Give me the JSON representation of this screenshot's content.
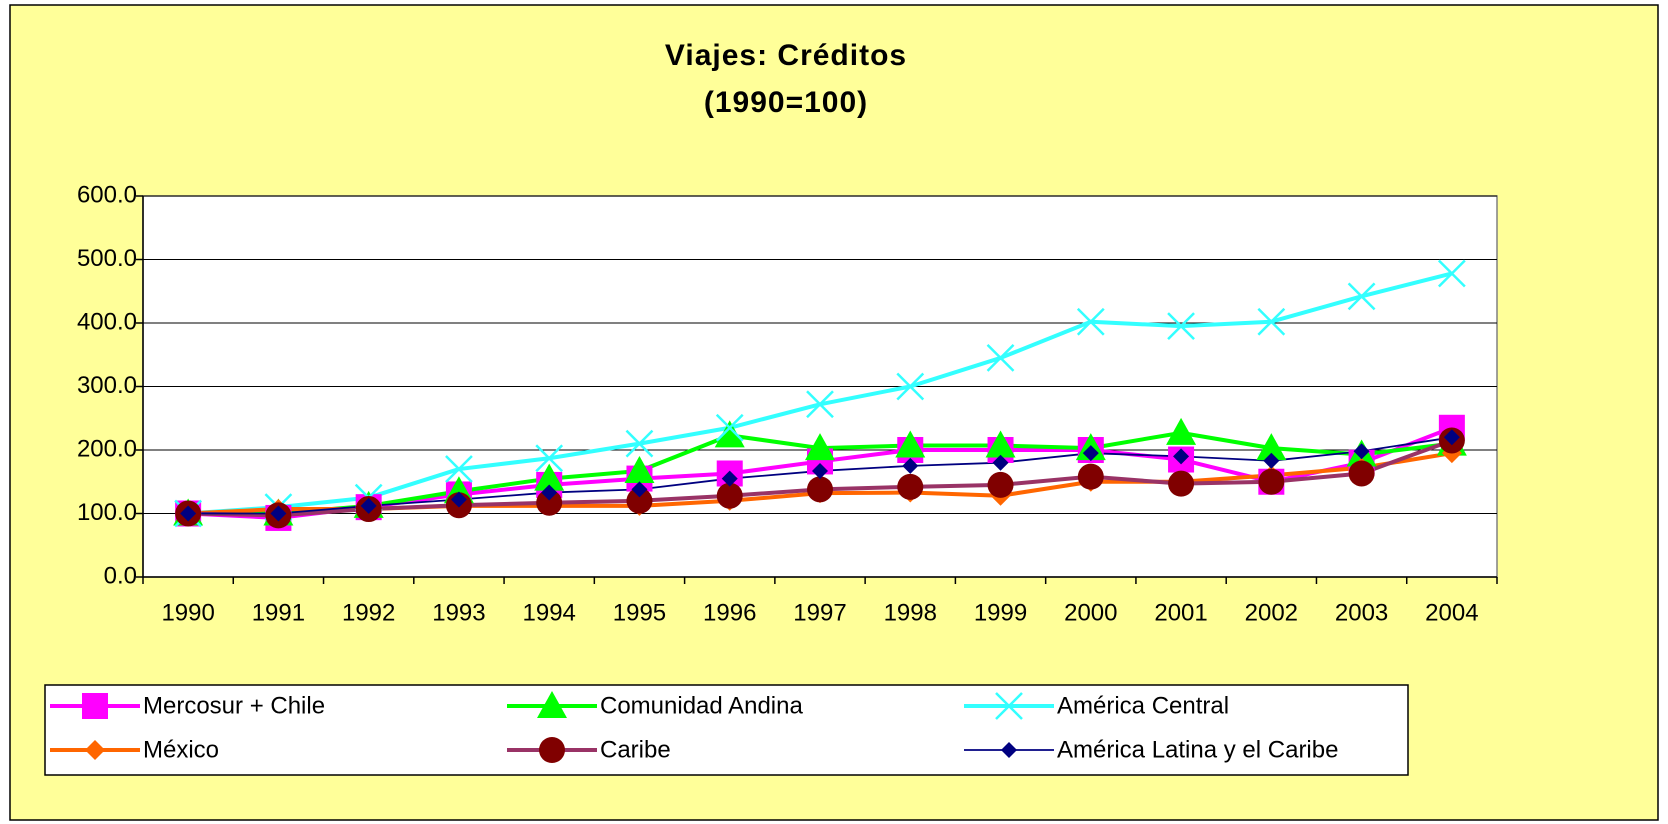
{
  "chart_data": {
    "type": "line",
    "title": "Viajes: Créditos",
    "subtitle": "(1990=100)",
    "categories": [
      "1990",
      "1991",
      "1992",
      "1993",
      "1994",
      "1995",
      "1996",
      "1997",
      "1998",
      "1999",
      "2000",
      "2001",
      "2002",
      "2003",
      "2004"
    ],
    "ylim": [
      0,
      600
    ],
    "yticks": [
      {
        "value": 0,
        "label": "0.0"
      },
      {
        "value": 100,
        "label": "100.0"
      },
      {
        "value": 200,
        "label": "200.0"
      },
      {
        "value": 300,
        "label": "300.0"
      },
      {
        "value": 400,
        "label": "400.0"
      },
      {
        "value": 500,
        "label": "500.0"
      },
      {
        "value": 600,
        "label": "600.0"
      }
    ],
    "grid": true,
    "legend": "bottom",
    "series": [
      {
        "name": "Mercosur + Chile",
        "color": "#FF00FF",
        "marker": "square",
        "values": [
          100,
          93,
          110,
          130,
          145,
          155,
          163,
          182,
          200,
          200,
          200,
          185,
          150,
          180,
          235
        ]
      },
      {
        "name": "Comunidad Andina",
        "color": "#00FF00",
        "marker": "triangle",
        "values": [
          100,
          100,
          112,
          135,
          155,
          167,
          223,
          203,
          207,
          207,
          203,
          227,
          203,
          193,
          210
        ]
      },
      {
        "name": "América Central",
        "color": "#33FFFF",
        "marker": "x",
        "values": [
          100,
          110,
          125,
          170,
          187,
          210,
          235,
          272,
          300,
          345,
          402,
          395,
          402,
          442,
          478
        ]
      },
      {
        "name": "México",
        "color": "#FF6600",
        "marker": "diamond",
        "values": [
          100,
          107,
          107,
          112,
          112,
          112,
          120,
          132,
          133,
          128,
          150,
          150,
          160,
          172,
          195
        ]
      },
      {
        "name": "Caribe",
        "color": "#993366",
        "marker_color": "#800000",
        "marker": "circle",
        "values": [
          100,
          97,
          107,
          113,
          117,
          120,
          128,
          138,
          142,
          145,
          158,
          147,
          150,
          163,
          215
        ]
      },
      {
        "name": "América Latina y el Caribe",
        "color": "#000080",
        "marker": "smalldiamond",
        "values": [
          100,
          100,
          112,
          122,
          133,
          138,
          155,
          167,
          175,
          180,
          195,
          190,
          183,
          198,
          220
        ]
      }
    ]
  }
}
